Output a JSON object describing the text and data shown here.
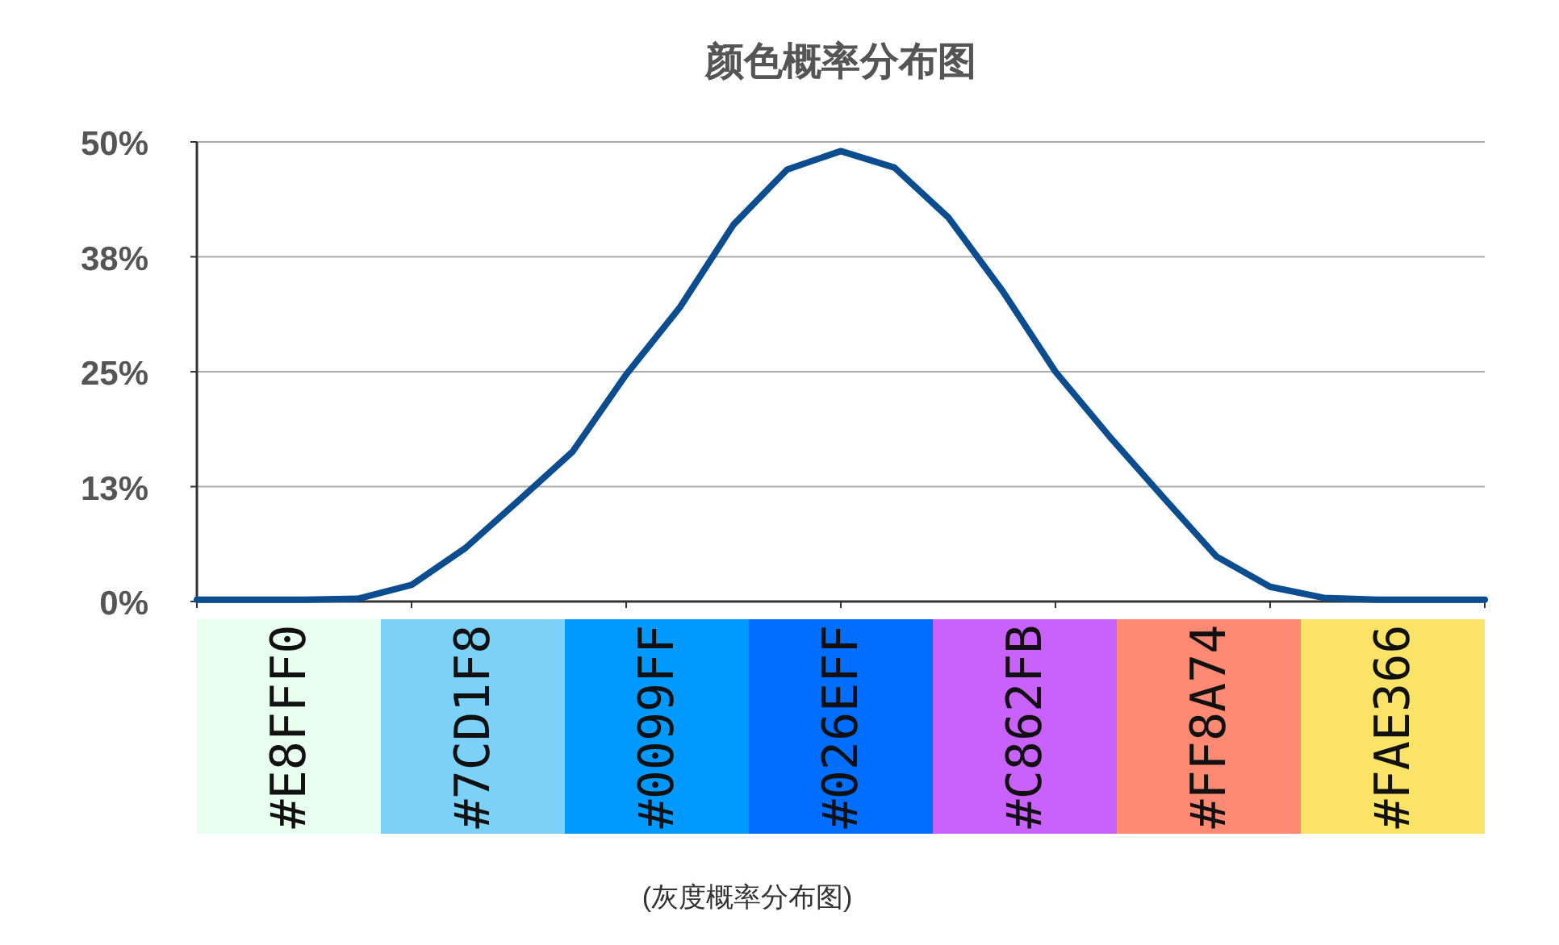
{
  "chart_data": [
    {
      "type": "line",
      "title": "颜色概率分布图",
      "categories": [
        null,
        null,
        null,
        null,
        null,
        null,
        null,
        null,
        null,
        null,
        null,
        null,
        null,
        null,
        null,
        null,
        null,
        null,
        null,
        null,
        null,
        null,
        null,
        null,
        null
      ],
      "series": [
        {
          "color": "#0b4d8f",
          "values": [
            0.2,
            0.2,
            0.2,
            0.3,
            1.8,
            5.8,
            11,
            16.3,
            24.7,
            32,
            41,
            47,
            49,
            47.2,
            41.8,
            33.9,
            25,
            18,
            11.4,
            4.9,
            1.6,
            0.4,
            0.2,
            0.2,
            0.2
          ]
        }
      ],
      "ylim": [
        0,
        50
      ],
      "yticks": [
        {
          "value": 0,
          "label": "0%"
        },
        {
          "value": 12.5,
          "label": "13%"
        },
        {
          "value": 25,
          "label": "25%"
        },
        {
          "value": 37.5,
          "label": "38%"
        },
        {
          "value": 50,
          "label": "50%"
        }
      ],
      "grid": "y",
      "marker": "none",
      "line_style": "solid"
    },
    {
      "type": "other",
      "categories": [
        "#E8FFF0",
        "#7CD1F8",
        "#0099FF",
        "#026EFF",
        "#C862FB",
        "#FF8A74",
        "#FAE366"
      ],
      "colors": [
        "#e8fff0",
        "#7cd1f8",
        "#0099ff",
        "#026eff",
        "#c862fb",
        "#ff8a74",
        "#fae366"
      ],
      "annotations": [
        "(灰度概率分布图)"
      ]
    }
  ]
}
